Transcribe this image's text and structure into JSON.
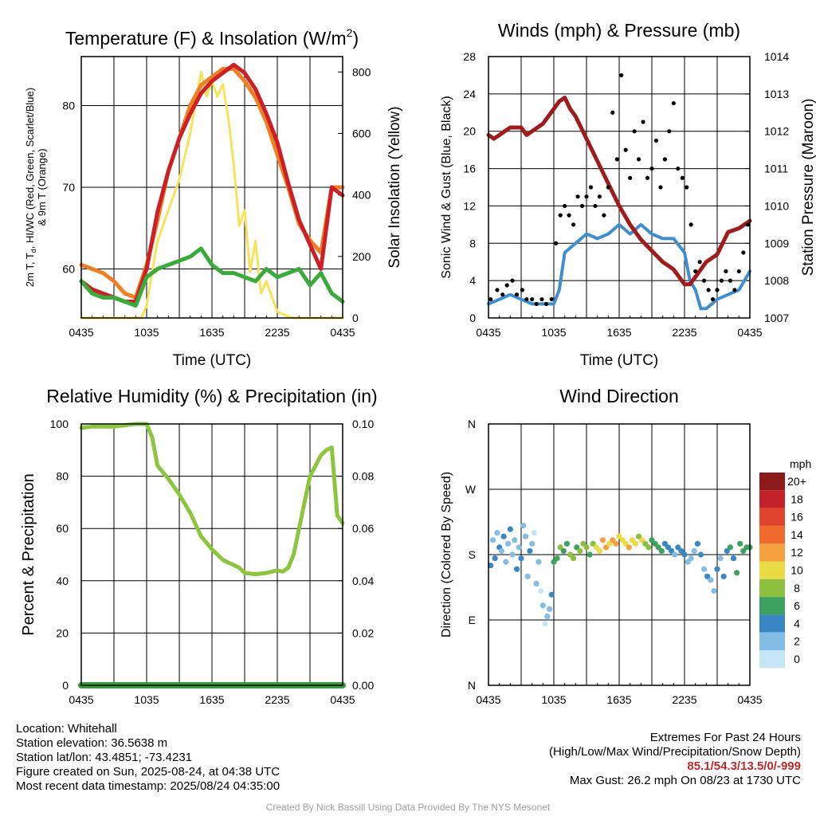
{
  "chart_data": [
    {
      "type": "line",
      "title": "Temperature (F) & Insolation (W/m",
      "title_superscript": "2",
      "title_end": ")",
      "xlabel": "Time (UTC)",
      "ylabel_lines": [
        "2m T, T",
        "d",
        ", HI/WC (Red, Green, Scarlet/Blue)",
        "& 9m T (Orange)"
      ],
      "y2label": "Solar Insolation (Yellow)",
      "x_ticks": [
        "0435",
        "1035",
        "1635",
        "2235",
        "0435"
      ],
      "xlim": [
        0,
        24
      ],
      "ylim": [
        54,
        86
      ],
      "y_ticks": [
        60,
        70,
        80
      ],
      "y2lim": [
        0,
        850
      ],
      "y2_ticks": [
        0,
        200,
        400,
        600,
        800
      ],
      "grid": true,
      "series": [
        {
          "axis": "left",
          "color": "#f07f24",
          "x": [
            0,
            1,
            2,
            3,
            4,
            5,
            6,
            7,
            8,
            9,
            10,
            11,
            12,
            13,
            14,
            15,
            16,
            17,
            18,
            19,
            20,
            21,
            22,
            23,
            24
          ],
          "y": [
            60.5,
            60,
            59.5,
            58.5,
            57,
            56.5,
            60.5,
            66,
            72,
            76,
            80,
            82.5,
            83.5,
            84.5,
            84.5,
            83,
            81,
            78,
            74,
            70,
            65.5,
            63.5,
            62,
            70,
            70
          ]
        },
        {
          "axis": "left",
          "color": "#cc2026",
          "x": [
            0,
            1,
            2,
            3,
            4,
            5,
            6,
            7,
            8,
            9,
            10,
            11,
            12,
            13,
            14,
            15,
            16,
            17,
            18,
            19,
            20,
            21,
            22,
            23,
            24
          ],
          "y": [
            58.5,
            57.5,
            57,
            56.5,
            56,
            56,
            60,
            67,
            72,
            76,
            79,
            81.5,
            83,
            84,
            85,
            84,
            82,
            79,
            75.5,
            70.5,
            66,
            63,
            60,
            70,
            69
          ]
        },
        {
          "axis": "left",
          "color": "#3aaa3a",
          "x": [
            0,
            1,
            2,
            3,
            4,
            5,
            6,
            7,
            8,
            9,
            10,
            11,
            12,
            13,
            14,
            15,
            16,
            17,
            18,
            19,
            20,
            21,
            22,
            23,
            24
          ],
          "y": [
            58.5,
            57,
            56.5,
            56.5,
            56,
            55.5,
            59,
            60,
            60.5,
            61,
            61.5,
            62.5,
            60.5,
            59.5,
            59.5,
            59,
            58.5,
            60,
            59,
            59.5,
            60,
            58,
            59.5,
            57,
            56
          ]
        },
        {
          "axis": "right",
          "color": "#f7e35a",
          "x": [
            0,
            3,
            5.5,
            6.0,
            6.5,
            7,
            8,
            9,
            10,
            10.5,
            11,
            11.5,
            12,
            12.5,
            13,
            13.5,
            14,
            14.5,
            15,
            15.5,
            16,
            16.5,
            17,
            18,
            19,
            19.5,
            20,
            24
          ],
          "y": [
            0,
            0,
            0,
            40,
            150,
            250,
            350,
            450,
            600,
            700,
            800,
            720,
            770,
            720,
            760,
            650,
            500,
            300,
            350,
            150,
            250,
            80,
            120,
            20,
            5,
            0,
            0,
            0
          ]
        }
      ]
    },
    {
      "type": "line",
      "title": "Winds (mph) & Pressure (mb)",
      "xlabel": "Time (UTC)",
      "ylabel": "Sonic Wind & Gust (Blue, Black)",
      "y2label": "Station Pressure (Maroon)",
      "x_ticks": [
        "0435",
        "1035",
        "1635",
        "2235",
        "0435"
      ],
      "xlim": [
        0,
        24
      ],
      "ylim": [
        0,
        28
      ],
      "y_ticks": [
        0,
        4,
        8,
        12,
        16,
        20,
        24,
        28
      ],
      "y2lim": [
        1007,
        1014
      ],
      "y2_ticks": [
        1007,
        1008,
        1009,
        1010,
        1011,
        1012,
        1013,
        1014
      ],
      "grid": true,
      "series": [
        {
          "axis": "left",
          "color": "#3f8fd0",
          "x": [
            0,
            1,
            2,
            3,
            4,
            5,
            6,
            6.5,
            7,
            8,
            9,
            10,
            11,
            12,
            13,
            14,
            15,
            16,
            17,
            18,
            18.5,
            19,
            19.5,
            20,
            21,
            22,
            23,
            24
          ],
          "y": [
            1.5,
            2,
            2.5,
            2,
            1.5,
            1.5,
            1.5,
            3,
            7,
            8,
            9,
            8.5,
            9,
            10,
            9,
            10,
            9,
            8.5,
            8.5,
            7,
            4,
            3,
            1,
            1,
            2,
            2.5,
            3,
            5
          ]
        },
        {
          "axis": "right",
          "color": "#a01c1c",
          "x": [
            0,
            0.5,
            1,
            2,
            3,
            3.5,
            4,
            5,
            6,
            6.5,
            7,
            7.5,
            8,
            9,
            10,
            11,
            12,
            13,
            14,
            15,
            16,
            17,
            18,
            18.5,
            19,
            20,
            21,
            21.5,
            22,
            23,
            24
          ],
          "y": [
            1011.9,
            1011.8,
            1011.9,
            1012.1,
            1012.1,
            1011.9,
            1012.0,
            1012.2,
            1012.6,
            1012.8,
            1012.9,
            1012.6,
            1012.4,
            1011.8,
            1011.2,
            1010.6,
            1010.0,
            1009.5,
            1009.1,
            1008.8,
            1008.5,
            1008.3,
            1007.9,
            1007.9,
            1008.1,
            1008.5,
            1008.7,
            1009.0,
            1009.3,
            1009.4,
            1009.6
          ]
        },
        {
          "axis": "left",
          "color": "#000000",
          "kind": "scatter",
          "x": [
            0.2,
            0.8,
            1.3,
            1.7,
            2.2,
            2.6,
            3.1,
            3.5,
            4.0,
            4.4,
            4.9,
            5.3,
            5.8,
            6.2,
            6.6,
            7.0,
            7.4,
            7.8,
            8.2,
            8.6,
            9.0,
            9.4,
            9.8,
            10.2,
            10.6,
            11.0,
            11.4,
            11.8,
            12.2,
            12.6,
            13.0,
            13.4,
            13.8,
            14.2,
            14.6,
            15.0,
            15.4,
            15.8,
            16.2,
            16.6,
            17.0,
            17.4,
            17.8,
            18.2,
            18.6,
            19.0,
            19.4,
            19.8,
            20.2,
            20.6,
            21.0,
            21.4,
            21.8,
            22.2,
            22.6,
            23.0,
            23.4,
            23.8
          ],
          "y": [
            2,
            3,
            2.5,
            3.5,
            4,
            2.5,
            3,
            2,
            2,
            1.5,
            2,
            1.5,
            2,
            8,
            11,
            12,
            11,
            10,
            13,
            12,
            13,
            14,
            12,
            13,
            11,
            14,
            22,
            17,
            26,
            18,
            15,
            20,
            17,
            21,
            15,
            16,
            19,
            14,
            17,
            20,
            23,
            16,
            15,
            14,
            10,
            5,
            6,
            4,
            3,
            2,
            3,
            4,
            5,
            4,
            3,
            5,
            7,
            10
          ]
        }
      ]
    },
    {
      "type": "line",
      "title": "Relative Humidity (%) & Precipitation (in)",
      "xlabel": "",
      "ylabel": "Percent & Precipitation",
      "x_ticks": [
        "0435",
        "1035",
        "1635",
        "2235",
        "0435"
      ],
      "xlim": [
        0,
        24
      ],
      "ylim": [
        0,
        100
      ],
      "y_ticks": [
        0,
        20,
        40,
        60,
        80,
        100
      ],
      "y2lim": [
        0,
        0.1
      ],
      "y2_ticks": [
        "0.00",
        "0.02",
        "0.04",
        "0.06",
        "0.08",
        "0.10"
      ],
      "grid": true,
      "series": [
        {
          "axis": "left",
          "color": "#8cc63f",
          "x": [
            0,
            1,
            2,
            3,
            4,
            5,
            6,
            6.5,
            7,
            8,
            9,
            10,
            11,
            12,
            13,
            14,
            14.5,
            15,
            16,
            17,
            18,
            18.5,
            19,
            19.5,
            20,
            21,
            22,
            22.5,
            23,
            23.5,
            24
          ],
          "y": [
            98.5,
            99,
            99,
            99,
            99.5,
            100,
            100,
            95,
            84,
            79,
            73,
            66,
            57,
            52,
            48,
            46,
            45,
            43,
            42.5,
            43,
            44,
            43.5,
            45,
            50,
            60,
            80,
            88,
            90,
            91,
            65,
            62
          ]
        },
        {
          "axis": "right",
          "color": "#3a9a3a",
          "x": [
            0,
            24
          ],
          "y": [
            0,
            0
          ]
        }
      ]
    },
    {
      "type": "scatter",
      "title": "Wind Direction",
      "ylabel": "Direction (Colored By Speed)",
      "x_ticks": [
        "0435",
        "1035",
        "1635",
        "2235",
        "0435"
      ],
      "xlim": [
        0,
        24
      ],
      "ylim": [
        0,
        360
      ],
      "y_tick_values": [
        0,
        90,
        180,
        270,
        360
      ],
      "y_tick_labels": [
        "N",
        "E",
        "S",
        "W",
        "N"
      ],
      "grid": true,
      "legend_title": "mph",
      "legend_labels": [
        "20+",
        "18",
        "16",
        "14",
        "12",
        "10",
        "8",
        "6",
        "4",
        "2",
        "0"
      ],
      "legend_colors": [
        "#8c1a1a",
        "#c4222a",
        "#e0432b",
        "#f06a2d",
        "#f7a040",
        "#eadc46",
        "#8cc03e",
        "#3da260",
        "#3a87c6",
        "#82bde6",
        "#c6e6f6"
      ],
      "points": {
        "x": [
          0.2,
          0.4,
          0.6,
          0.8,
          1.0,
          1.2,
          1.4,
          1.6,
          1.8,
          2.0,
          2.2,
          2.4,
          2.6,
          2.8,
          3.0,
          3.2,
          3.4,
          3.6,
          3.8,
          4.0,
          4.2,
          4.4,
          4.6,
          4.8,
          5.0,
          5.2,
          5.4,
          5.6,
          5.8,
          6.0,
          6.3,
          6.6,
          6.9,
          7.2,
          7.5,
          7.8,
          8.1,
          8.4,
          8.7,
          9.0,
          9.3,
          9.6,
          9.9,
          10.2,
          10.5,
          10.8,
          11.1,
          11.4,
          11.7,
          12.0,
          12.3,
          12.6,
          12.9,
          13.2,
          13.5,
          13.8,
          14.1,
          14.4,
          14.7,
          15.0,
          15.3,
          15.6,
          15.9,
          16.2,
          16.5,
          16.8,
          17.1,
          17.4,
          17.7,
          18.0,
          18.3,
          18.6,
          18.9,
          19.2,
          19.5,
          19.8,
          20.1,
          20.4,
          20.7,
          21.0,
          21.3,
          21.6,
          21.9,
          22.2,
          22.5,
          22.8,
          23.1,
          23.4,
          23.7,
          24.0
        ],
        "y": [
          165,
          200,
          175,
          210,
          190,
          185,
          205,
          170,
          195,
          215,
          180,
          200,
          160,
          190,
          175,
          220,
          205,
          150,
          185,
          195,
          210,
          140,
          170,
          130,
          110,
          85,
          95,
          105,
          125,
          170,
          175,
          190,
          185,
          195,
          180,
          175,
          190,
          185,
          195,
          190,
          180,
          195,
          190,
          185,
          200,
          190,
          195,
          200,
          195,
          205,
          200,
          195,
          190,
          200,
          195,
          205,
          200,
          195,
          190,
          200,
          195,
          190,
          185,
          195,
          190,
          185,
          180,
          190,
          185,
          180,
          170,
          175,
          185,
          195,
          180,
          160,
          150,
          145,
          130,
          160,
          175,
          150,
          185,
          190,
          175,
          155,
          195,
          185,
          190,
          190
        ],
        "speed": [
          3,
          2,
          4,
          1,
          3,
          2,
          4,
          1,
          2,
          3,
          1,
          2,
          4,
          1,
          3,
          2,
          1,
          2,
          3,
          1,
          0,
          1,
          2,
          0,
          1,
          0,
          2,
          1,
          3,
          5,
          6,
          7,
          6,
          5,
          7,
          8,
          6,
          7,
          8,
          7,
          6,
          7,
          9,
          10,
          11,
          12,
          10,
          11,
          12,
          10,
          9,
          10,
          11,
          9,
          10,
          8,
          9,
          8,
          7,
          6,
          5,
          6,
          5,
          4,
          4,
          3,
          2,
          3,
          4,
          3,
          2,
          1,
          2,
          3,
          4,
          2,
          3,
          1,
          2,
          3,
          2,
          4,
          3,
          5,
          4,
          6,
          5,
          6,
          5,
          6
        ]
      }
    }
  ],
  "info": {
    "location": "Location: Whitehall",
    "elevation": "Station elevation: 36.5638 m",
    "latlon": "Station lat/lon: 43.4851; -73.4231",
    "created": "Figure created on Sun, 2025-08-24, at 04:38 UTC",
    "recent": "Most recent data timestamp: 2025/08/24 04:35:00"
  },
  "extremes": {
    "title": "Extremes For Past 24 Hours",
    "subtitle": "(High/Low/Max Wind/Precipitation/Snow Depth)",
    "values": "85.1/54.3/13.5/0/-999",
    "gust": "Max Gust: 26.2 mph On 08/23 at 1730 UTC"
  },
  "credit": "Created By Nick Bassill Using Data Provided By The NYS Mesonet"
}
